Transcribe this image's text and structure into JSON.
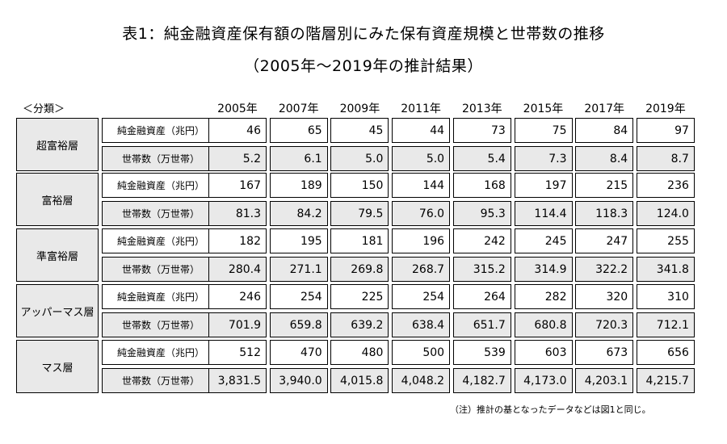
{
  "title": "表1：純金融資産保有額の階層別にみた保有資産規模と世帯数の推移",
  "subtitle": "（2005年～2019年の推計結果）",
  "category_header": "＜分類＞",
  "years": [
    "2005年",
    "2007年",
    "2009年",
    "2011年",
    "2013年",
    "2015年",
    "2017年",
    "2019年"
  ],
  "row_labels": {
    "assets": "純金融資産（兆円）",
    "households": "世帯数（万世帯）"
  },
  "groups": [
    {
      "name": "超富裕層",
      "assets": [
        "46",
        "65",
        "45",
        "44",
        "73",
        "75",
        "84",
        "97"
      ],
      "households": [
        "5.2",
        "6.1",
        "5.0",
        "5.0",
        "5.4",
        "7.3",
        "8.4",
        "8.7"
      ]
    },
    {
      "name": "富裕層",
      "assets": [
        "167",
        "189",
        "150",
        "144",
        "168",
        "197",
        "215",
        "236"
      ],
      "households": [
        "81.3",
        "84.2",
        "79.5",
        "76.0",
        "95.3",
        "114.4",
        "118.3",
        "124.0"
      ]
    },
    {
      "name": "準富裕層",
      "assets": [
        "182",
        "195",
        "181",
        "196",
        "242",
        "245",
        "247",
        "255"
      ],
      "households": [
        "280.4",
        "271.1",
        "269.8",
        "268.7",
        "315.2",
        "314.9",
        "322.2",
        "341.8"
      ]
    },
    {
      "name": "アッパーマス層",
      "assets": [
        "246",
        "254",
        "225",
        "254",
        "264",
        "282",
        "320",
        "310"
      ],
      "households": [
        "701.9",
        "659.8",
        "639.2",
        "638.4",
        "651.7",
        "680.8",
        "720.3",
        "712.1"
      ]
    },
    {
      "name": "マス層",
      "assets": [
        "512",
        "470",
        "480",
        "500",
        "539",
        "603",
        "673",
        "656"
      ],
      "households": [
        "3,831.5",
        "3,940.0",
        "4,015.8",
        "4,048.2",
        "4,182.7",
        "4,173.0",
        "4,203.1",
        "4,215.7"
      ]
    }
  ],
  "note": "（注）推計の基となったデータなどは図1と同じ。"
}
